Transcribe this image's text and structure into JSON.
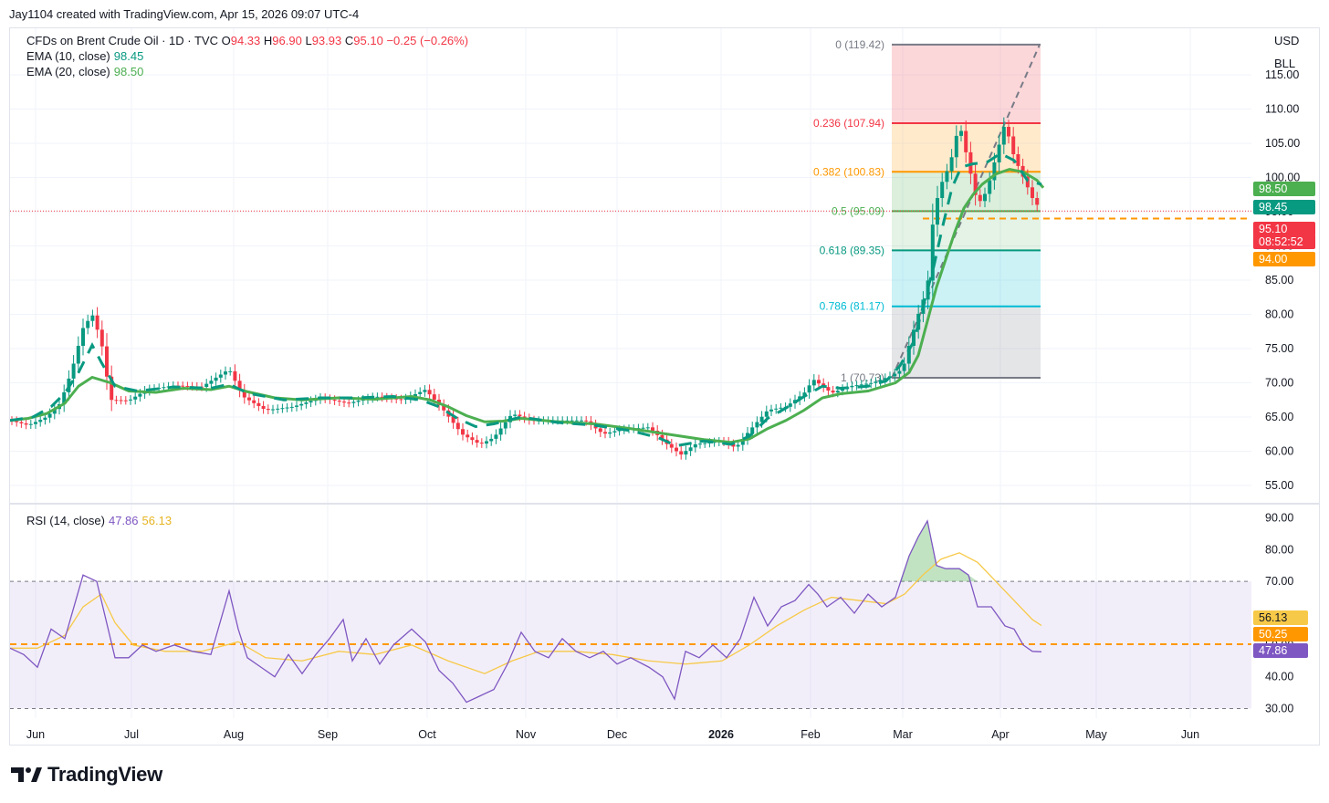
{
  "header": {
    "title": "Jay1104 created with TradingView.com, Apr 15, 2026 09:07 UTC-4"
  },
  "legend": {
    "symbol": "CFDs on Brent Crude Oil · 1D · TVC",
    "open_label": "O",
    "open": "94.33",
    "high_label": "H",
    "high": "96.90",
    "low_label": "L",
    "low": "93.93",
    "close_label": "C",
    "close": "95.10",
    "change": "−0.25 (−0.26%)",
    "ema10_label": "EMA (10, close)",
    "ema10": "98.45",
    "ema20_label": "EMA (20, close)",
    "ema20": "98.50",
    "rsi_label": "RSI (14, close)",
    "rsi": "47.86",
    "rsi_ma": "56.13"
  },
  "scale": {
    "currency": "USD",
    "unit": "BLL"
  },
  "footer": {
    "brand": "TradingView"
  },
  "colors": {
    "up": "#089981",
    "down": "#f23645",
    "ema10": "#089981",
    "ema20": "#4caf50",
    "rsi": "#7e57c2",
    "rsi_ma": "#f7c948",
    "last_price": "#f23645",
    "fib_mid": "#ff9800"
  },
  "chart_data": {
    "type": "candlestick",
    "months": [
      "Jun",
      "Jul",
      "Aug",
      "Sep",
      "Oct",
      "Nov",
      "Dec",
      "2026",
      "Feb",
      "Mar",
      "Apr",
      "May",
      "Jun"
    ],
    "price_axis": {
      "ticks": [
        "115.00",
        "110.00",
        "105.00",
        "100.00",
        "95.00",
        "90.00",
        "85.00",
        "80.00",
        "75.00",
        "70.00",
        "65.00",
        "60.00",
        "55.00"
      ],
      "ylim": [
        53,
        121
      ]
    },
    "fibonacci": [
      {
        "label": "0 (119.42)",
        "level": 119.42,
        "color": "#787b86"
      },
      {
        "label": "0.236 (107.94)",
        "level": 107.94,
        "color": "#f23645"
      },
      {
        "label": "0.382 (100.83)",
        "level": 100.83,
        "color": "#ff9800"
      },
      {
        "label": "0.5 (95.09)",
        "level": 95.09,
        "color": "#4caf50"
      },
      {
        "label": "0.618 (89.35)",
        "level": 89.35,
        "color": "#089981"
      },
      {
        "label": "0.786 (81.17)",
        "level": 81.17,
        "color": "#00bcd4"
      },
      {
        "label": "1 (70.73)",
        "level": 70.73,
        "color": "#787b86"
      }
    ],
    "price_tags": [
      {
        "text": "98.50",
        "value": 98.5,
        "color": "#4caf50"
      },
      {
        "text": "98.45",
        "value": 98.45,
        "color": "#089981"
      },
      {
        "text": "95.10",
        "value": 95.1,
        "color": "#f23645"
      },
      {
        "text": "08:52:52",
        "value": 95.1,
        "color": "#f23645"
      },
      {
        "text": "94.00",
        "value": 94.0,
        "color": "#ff9800"
      }
    ],
    "rsi_axis": {
      "ticks": [
        "90.00",
        "80.00",
        "70.00",
        "50.00",
        "40.00",
        "30.00"
      ],
      "ylim": [
        27,
        93
      ],
      "bands": [
        30,
        70
      ]
    },
    "rsi_tags": [
      {
        "text": "56.13",
        "value": 56.13,
        "color": "#f7c948"
      },
      {
        "text": "50.25",
        "value": 50.25,
        "color": "#ff9800"
      },
      {
        "text": "47.86",
        "value": 47.86,
        "color": "#7e57c2"
      }
    ],
    "ema20_path": [
      [
        0,
        64.5
      ],
      [
        20,
        64.8
      ],
      [
        40,
        65.5
      ],
      [
        60,
        67
      ],
      [
        75,
        69.5
      ],
      [
        90,
        70.8
      ],
      [
        110,
        70
      ],
      [
        130,
        68.8
      ],
      [
        160,
        68.6
      ],
      [
        190,
        69.2
      ],
      [
        220,
        69
      ],
      [
        240,
        69.5
      ],
      [
        260,
        68.7
      ],
      [
        290,
        67.8
      ],
      [
        320,
        67.5
      ],
      [
        360,
        67.8
      ],
      [
        400,
        67.6
      ],
      [
        440,
        68
      ],
      [
        460,
        67.5
      ],
      [
        480,
        66.5
      ],
      [
        500,
        65.2
      ],
      [
        520,
        64.3
      ],
      [
        540,
        64.4
      ],
      [
        560,
        64.8
      ],
      [
        600,
        64.3
      ],
      [
        640,
        64
      ],
      [
        680,
        63.3
      ],
      [
        720,
        62.5
      ],
      [
        760,
        61.7
      ],
      [
        790,
        61.3
      ],
      [
        810,
        61.8
      ],
      [
        830,
        63.3
      ],
      [
        850,
        64.5
      ],
      [
        870,
        66
      ],
      [
        890,
        67.8
      ],
      [
        910,
        68.4
      ],
      [
        940,
        68.8
      ],
      [
        970,
        70
      ],
      [
        985,
        71.5
      ],
      [
        995,
        74
      ],
      [
        1005,
        79
      ],
      [
        1015,
        84
      ],
      [
        1025,
        88
      ],
      [
        1035,
        92
      ],
      [
        1045,
        95.5
      ],
      [
        1055,
        97.5
      ],
      [
        1065,
        99
      ],
      [
        1080,
        100.5
      ],
      [
        1095,
        101.2
      ],
      [
        1110,
        100.8
      ],
      [
        1125,
        99.6
      ],
      [
        1132,
        98.5
      ]
    ],
    "ema10_path": [
      [
        0,
        64.5
      ],
      [
        25,
        65
      ],
      [
        45,
        66.5
      ],
      [
        60,
        68.5
      ],
      [
        75,
        71.5
      ],
      [
        90,
        75.5
      ],
      [
        100,
        73
      ],
      [
        115,
        69.5
      ],
      [
        140,
        68.8
      ],
      [
        180,
        69.4
      ],
      [
        220,
        69.2
      ],
      [
        240,
        69.8
      ],
      [
        260,
        68.5
      ],
      [
        300,
        67.5
      ],
      [
        340,
        67.8
      ],
      [
        380,
        67.8
      ],
      [
        420,
        68
      ],
      [
        450,
        67.5
      ],
      [
        470,
        66.5
      ],
      [
        490,
        64.8
      ],
      [
        510,
        63.6
      ],
      [
        530,
        64
      ],
      [
        560,
        65
      ],
      [
        600,
        64.2
      ],
      [
        640,
        63.8
      ],
      [
        680,
        63
      ],
      [
        710,
        62
      ],
      [
        730,
        60.8
      ],
      [
        760,
        61.5
      ],
      [
        790,
        61
      ],
      [
        810,
        62.2
      ],
      [
        830,
        64.8
      ],
      [
        850,
        66.3
      ],
      [
        870,
        68
      ],
      [
        890,
        69.5
      ],
      [
        910,
        69.2
      ],
      [
        940,
        69.5
      ],
      [
        960,
        70.3
      ],
      [
        975,
        72.5
      ],
      [
        990,
        76
      ],
      [
        1000,
        81
      ],
      [
        1012,
        87
      ],
      [
        1022,
        93
      ],
      [
        1032,
        98.5
      ],
      [
        1042,
        101.5
      ],
      [
        1055,
        102
      ],
      [
        1070,
        102.2
      ],
      [
        1085,
        103.5
      ],
      [
        1100,
        102.5
      ],
      [
        1115,
        99.5
      ],
      [
        1130,
        99
      ]
    ],
    "price_path": [
      [
        0,
        64.5
      ],
      [
        20,
        63.8
      ],
      [
        40,
        65
      ],
      [
        55,
        67
      ],
      [
        68,
        72
      ],
      [
        80,
        78
      ],
      [
        90,
        80
      ],
      [
        100,
        76
      ],
      [
        110,
        67.5
      ],
      [
        130,
        67.4
      ],
      [
        150,
        69
      ],
      [
        180,
        69.6
      ],
      [
        210,
        69.4
      ],
      [
        240,
        72
      ],
      [
        255,
        68
      ],
      [
        280,
        66
      ],
      [
        310,
        66.5
      ],
      [
        340,
        67.8
      ],
      [
        370,
        67
      ],
      [
        400,
        68
      ],
      [
        430,
        67.5
      ],
      [
        455,
        69
      ],
      [
        475,
        66
      ],
      [
        495,
        62.5
      ],
      [
        515,
        61
      ],
      [
        530,
        62
      ],
      [
        550,
        65.5
      ],
      [
        570,
        64.5
      ],
      [
        600,
        64.5
      ],
      [
        630,
        64.5
      ],
      [
        650,
        62.5
      ],
      [
        670,
        63.2
      ],
      [
        700,
        63.5
      ],
      [
        720,
        61
      ],
      [
        735,
        59.5
      ],
      [
        750,
        61
      ],
      [
        780,
        61.5
      ],
      [
        795,
        60.5
      ],
      [
        810,
        63
      ],
      [
        830,
        66
      ],
      [
        850,
        66.5
      ],
      [
        870,
        68.5
      ],
      [
        880,
        70.5
      ],
      [
        900,
        68.5
      ],
      [
        920,
        69.5
      ],
      [
        945,
        70
      ],
      [
        965,
        71
      ],
      [
        978,
        72
      ],
      [
        985,
        75.5
      ],
      [
        995,
        80
      ],
      [
        1005,
        84
      ],
      [
        1012,
        95
      ],
      [
        1020,
        99
      ],
      [
        1030,
        102
      ],
      [
        1040,
        108
      ],
      [
        1050,
        102
      ],
      [
        1060,
        96
      ],
      [
        1070,
        98
      ],
      [
        1080,
        103
      ],
      [
        1090,
        108
      ],
      [
        1100,
        103
      ],
      [
        1110,
        100
      ],
      [
        1120,
        97
      ],
      [
        1130,
        95.1
      ]
    ],
    "rsi_path": [
      [
        0,
        49
      ],
      [
        15,
        47
      ],
      [
        30,
        43
      ],
      [
        45,
        55
      ],
      [
        60,
        52
      ],
      [
        70,
        62
      ],
      [
        80,
        72
      ],
      [
        95,
        70
      ],
      [
        105,
        58
      ],
      [
        115,
        46
      ],
      [
        130,
        46
      ],
      [
        145,
        50
      ],
      [
        160,
        48
      ],
      [
        180,
        50
      ],
      [
        200,
        48
      ],
      [
        220,
        47
      ],
      [
        240,
        67
      ],
      [
        250,
        55
      ],
      [
        260,
        46
      ],
      [
        275,
        43
      ],
      [
        290,
        40
      ],
      [
        305,
        47
      ],
      [
        320,
        41
      ],
      [
        335,
        47
      ],
      [
        350,
        52
      ],
      [
        365,
        58
      ],
      [
        375,
        45
      ],
      [
        390,
        52
      ],
      [
        405,
        44
      ],
      [
        420,
        50
      ],
      [
        440,
        55
      ],
      [
        455,
        51
      ],
      [
        470,
        42
      ],
      [
        485,
        38
      ],
      [
        500,
        32
      ],
      [
        515,
        34
      ],
      [
        530,
        36
      ],
      [
        545,
        44
      ],
      [
        560,
        54
      ],
      [
        575,
        48
      ],
      [
        590,
        46
      ],
      [
        605,
        52
      ],
      [
        620,
        48
      ],
      [
        635,
        46
      ],
      [
        650,
        48
      ],
      [
        665,
        44
      ],
      [
        680,
        46
      ],
      [
        700,
        43
      ],
      [
        715,
        40
      ],
      [
        728,
        33
      ],
      [
        740,
        48
      ],
      [
        755,
        46
      ],
      [
        770,
        50
      ],
      [
        785,
        46
      ],
      [
        800,
        52
      ],
      [
        815,
        65
      ],
      [
        830,
        56
      ],
      [
        845,
        62
      ],
      [
        860,
        64
      ],
      [
        875,
        69
      ],
      [
        885,
        66
      ],
      [
        895,
        62
      ],
      [
        910,
        65
      ],
      [
        925,
        60
      ],
      [
        940,
        66
      ],
      [
        955,
        62
      ],
      [
        970,
        65
      ],
      [
        985,
        78
      ],
      [
        995,
        84
      ],
      [
        1005,
        89
      ],
      [
        1015,
        75
      ],
      [
        1025,
        74
      ],
      [
        1040,
        74
      ],
      [
        1050,
        72
      ],
      [
        1060,
        62
      ],
      [
        1075,
        62
      ],
      [
        1090,
        56
      ],
      [
        1100,
        55
      ],
      [
        1110,
        50
      ],
      [
        1120,
        48
      ],
      [
        1130,
        47.86
      ]
    ],
    "rsi_ma_path": [
      [
        0,
        49
      ],
      [
        30,
        49
      ],
      [
        60,
        53
      ],
      [
        80,
        62
      ],
      [
        100,
        66
      ],
      [
        115,
        57
      ],
      [
        135,
        50
      ],
      [
        170,
        48
      ],
      [
        210,
        48
      ],
      [
        250,
        51
      ],
      [
        280,
        46
      ],
      [
        320,
        45
      ],
      [
        360,
        48
      ],
      [
        400,
        47
      ],
      [
        440,
        50
      ],
      [
        480,
        45
      ],
      [
        520,
        41
      ],
      [
        550,
        45
      ],
      [
        580,
        48
      ],
      [
        620,
        48
      ],
      [
        660,
        47
      ],
      [
        700,
        45
      ],
      [
        740,
        44
      ],
      [
        780,
        45
      ],
      [
        810,
        50
      ],
      [
        840,
        56
      ],
      [
        870,
        61
      ],
      [
        900,
        65
      ],
      [
        930,
        64
      ],
      [
        960,
        63
      ],
      [
        980,
        66
      ],
      [
        1000,
        72
      ],
      [
        1020,
        77
      ],
      [
        1040,
        79
      ],
      [
        1060,
        76
      ],
      [
        1080,
        70
      ],
      [
        1100,
        64
      ],
      [
        1120,
        58
      ],
      [
        1130,
        56.13
      ]
    ]
  }
}
